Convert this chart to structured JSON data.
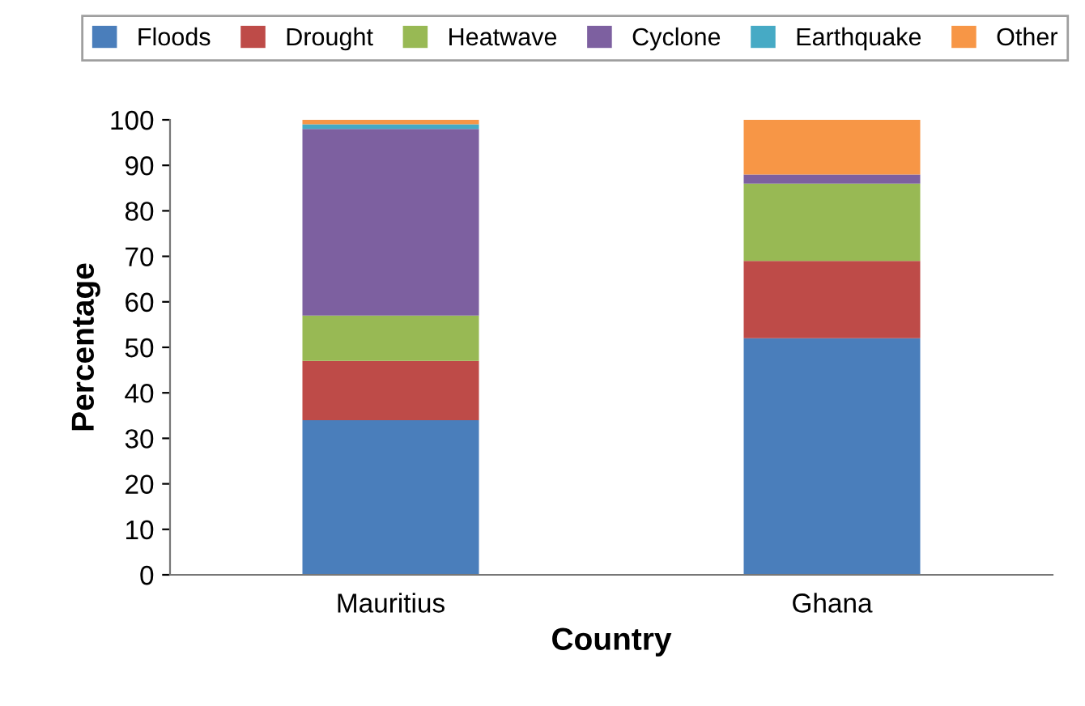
{
  "chart_data": {
    "type": "bar",
    "stacked": true,
    "xlabel": "Country",
    "ylabel": "Percentage",
    "categories": [
      "Mauritius",
      "Ghana"
    ],
    "series": [
      {
        "name": "Floods",
        "color": "#4a7ebb",
        "values": [
          34,
          52
        ]
      },
      {
        "name": "Drought",
        "color": "#be4b48",
        "values": [
          13,
          17
        ]
      },
      {
        "name": "Heatwave",
        "color": "#98b954",
        "values": [
          10,
          17
        ]
      },
      {
        "name": "Cyclone",
        "color": "#7d60a0",
        "values": [
          41,
          2
        ]
      },
      {
        "name": "Earthquake",
        "color": "#46aac5",
        "values": [
          1,
          0
        ]
      },
      {
        "name": "Other",
        "color": "#f79646",
        "values": [
          1,
          12
        ]
      }
    ],
    "ylim": [
      0,
      100
    ],
    "yticks": [
      0,
      10,
      20,
      30,
      40,
      50,
      60,
      70,
      80,
      90,
      100
    ],
    "grid": false,
    "legend": "top"
  }
}
